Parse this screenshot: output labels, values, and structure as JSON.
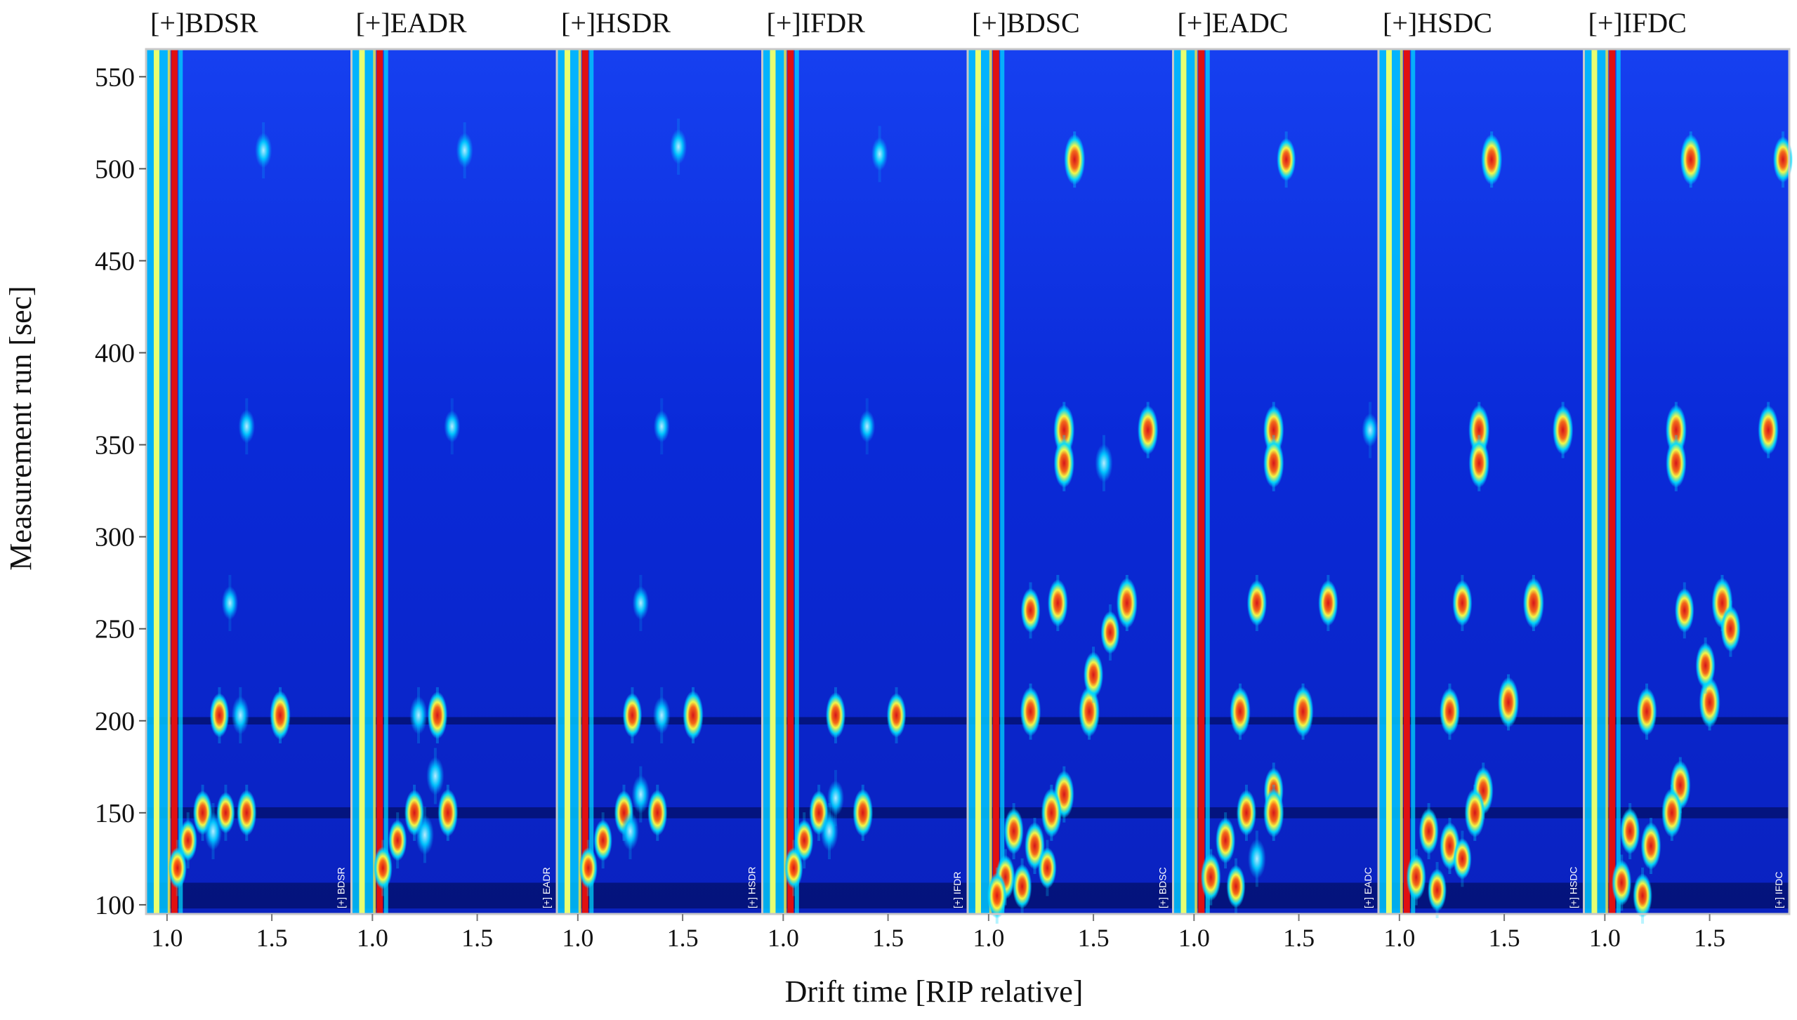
{
  "chart_data": {
    "type": "heatmap",
    "title": "",
    "xlabel": "Drift time [RIP relative]",
    "ylabel": "Measurement run [sec]",
    "y_ticks": [
      100,
      150,
      200,
      250,
      300,
      350,
      400,
      450,
      500,
      550
    ],
    "x_ticks": [
      1.0,
      1.5
    ],
    "x_tick_labels": [
      "1.0",
      "1.5"
    ],
    "ylim": [
      95,
      565
    ],
    "xlim": [
      0.9,
      1.88
    ],
    "colors": {
      "background": "#0a2ae0",
      "low": "#00009a",
      "mid": "#00d8ff",
      "high": "#ffff40",
      "peak": "#e01010"
    },
    "panels": [
      {
        "label": "[+]BDSR",
        "tag": "[+] BDSR",
        "peaks": [
          {
            "x": 1.54,
            "y": 203,
            "i": 0.95
          },
          {
            "x": 1.25,
            "y": 203,
            "i": 0.8
          },
          {
            "x": 1.35,
            "y": 203,
            "i": 0.6
          },
          {
            "x": 1.17,
            "y": 150,
            "i": 0.8
          },
          {
            "x": 1.28,
            "y": 150,
            "i": 0.7
          },
          {
            "x": 1.38,
            "y": 150,
            "i": 0.85
          },
          {
            "x": 1.1,
            "y": 135,
            "i": 0.7
          },
          {
            "x": 1.22,
            "y": 140,
            "i": 0.6
          },
          {
            "x": 1.05,
            "y": 120,
            "i": 0.7
          },
          {
            "x": 1.46,
            "y": 510,
            "i": 0.5
          },
          {
            "x": 1.38,
            "y": 360,
            "i": 0.45
          },
          {
            "x": 1.3,
            "y": 264,
            "i": 0.45
          }
        ]
      },
      {
        "label": "[+]EADR",
        "tag": "[+] EADR",
        "peaks": [
          {
            "x": 1.31,
            "y": 203,
            "i": 0.9
          },
          {
            "x": 1.22,
            "y": 203,
            "i": 0.6
          },
          {
            "x": 1.2,
            "y": 150,
            "i": 0.85
          },
          {
            "x": 1.36,
            "y": 150,
            "i": 0.9
          },
          {
            "x": 1.3,
            "y": 170,
            "i": 0.6
          },
          {
            "x": 1.12,
            "y": 135,
            "i": 0.7
          },
          {
            "x": 1.25,
            "y": 138,
            "i": 0.65
          },
          {
            "x": 1.05,
            "y": 120,
            "i": 0.75
          },
          {
            "x": 1.44,
            "y": 510,
            "i": 0.5
          },
          {
            "x": 1.38,
            "y": 360,
            "i": 0.4
          }
        ]
      },
      {
        "label": "[+]HSDR",
        "tag": "[+] HSDR",
        "peaks": [
          {
            "x": 1.55,
            "y": 203,
            "i": 0.95
          },
          {
            "x": 1.26,
            "y": 203,
            "i": 0.8
          },
          {
            "x": 1.4,
            "y": 203,
            "i": 0.55
          },
          {
            "x": 1.22,
            "y": 150,
            "i": 0.8
          },
          {
            "x": 1.38,
            "y": 150,
            "i": 0.85
          },
          {
            "x": 1.3,
            "y": 160,
            "i": 0.6
          },
          {
            "x": 1.12,
            "y": 135,
            "i": 0.7
          },
          {
            "x": 1.25,
            "y": 140,
            "i": 0.6
          },
          {
            "x": 1.05,
            "y": 120,
            "i": 0.7
          },
          {
            "x": 1.48,
            "y": 512,
            "i": 0.5
          },
          {
            "x": 1.3,
            "y": 264,
            "i": 0.45
          },
          {
            "x": 1.4,
            "y": 360,
            "i": 0.4
          }
        ]
      },
      {
        "label": "[+]IFDR",
        "tag": "[+] IFDR",
        "peaks": [
          {
            "x": 1.54,
            "y": 203,
            "i": 0.8
          },
          {
            "x": 1.25,
            "y": 203,
            "i": 0.85
          },
          {
            "x": 1.17,
            "y": 150,
            "i": 0.8
          },
          {
            "x": 1.38,
            "y": 150,
            "i": 0.9
          },
          {
            "x": 1.25,
            "y": 158,
            "i": 0.5
          },
          {
            "x": 1.1,
            "y": 135,
            "i": 0.7
          },
          {
            "x": 1.22,
            "y": 140,
            "i": 0.65
          },
          {
            "x": 1.05,
            "y": 120,
            "i": 0.7
          },
          {
            "x": 1.46,
            "y": 508,
            "i": 0.45
          },
          {
            "x": 1.4,
            "y": 360,
            "i": 0.4
          }
        ]
      },
      {
        "label": "[+]BDSC",
        "tag": "[+] BDSC",
        "peaks": [
          {
            "x": 1.41,
            "y": 505,
            "i": 1.0
          },
          {
            "x": 1.36,
            "y": 358,
            "i": 1.0
          },
          {
            "x": 1.36,
            "y": 340,
            "i": 0.95
          },
          {
            "x": 1.76,
            "y": 358,
            "i": 0.95
          },
          {
            "x": 1.55,
            "y": 340,
            "i": 0.6
          },
          {
            "x": 1.66,
            "y": 264,
            "i": 1.0
          },
          {
            "x": 1.58,
            "y": 248,
            "i": 0.75
          },
          {
            "x": 1.48,
            "y": 205,
            "i": 1.0
          },
          {
            "x": 1.5,
            "y": 225,
            "i": 0.85
          },
          {
            "x": 1.2,
            "y": 205,
            "i": 0.95
          },
          {
            "x": 1.33,
            "y": 264,
            "i": 0.9
          },
          {
            "x": 1.2,
            "y": 260,
            "i": 0.8
          },
          {
            "x": 1.36,
            "y": 160,
            "i": 0.9
          },
          {
            "x": 1.3,
            "y": 150,
            "i": 0.95
          },
          {
            "x": 1.22,
            "y": 132,
            "i": 0.9
          },
          {
            "x": 1.12,
            "y": 140,
            "i": 0.85
          },
          {
            "x": 1.08,
            "y": 115,
            "i": 0.8
          },
          {
            "x": 1.04,
            "y": 105,
            "i": 0.85
          },
          {
            "x": 1.16,
            "y": 110,
            "i": 0.8
          },
          {
            "x": 1.28,
            "y": 120,
            "i": 0.7
          }
        ]
      },
      {
        "label": "[+]EADC",
        "tag": "[+] EADC",
        "peaks": [
          {
            "x": 1.44,
            "y": 505,
            "i": 0.75
          },
          {
            "x": 1.38,
            "y": 358,
            "i": 0.95
          },
          {
            "x": 1.38,
            "y": 340,
            "i": 0.95
          },
          {
            "x": 1.3,
            "y": 264,
            "i": 0.85
          },
          {
            "x": 1.64,
            "y": 264,
            "i": 0.85
          },
          {
            "x": 1.52,
            "y": 205,
            "i": 1.0
          },
          {
            "x": 1.22,
            "y": 205,
            "i": 0.95
          },
          {
            "x": 1.38,
            "y": 162,
            "i": 0.85
          },
          {
            "x": 1.38,
            "y": 150,
            "i": 0.95
          },
          {
            "x": 1.25,
            "y": 150,
            "i": 0.85
          },
          {
            "x": 1.15,
            "y": 135,
            "i": 0.85
          },
          {
            "x": 1.08,
            "y": 115,
            "i": 0.9
          },
          {
            "x": 1.2,
            "y": 110,
            "i": 0.75
          },
          {
            "x": 1.3,
            "y": 125,
            "i": 0.65
          },
          {
            "x": 1.84,
            "y": 358,
            "i": 0.45
          }
        ]
      },
      {
        "label": "[+]HSDC",
        "tag": "[+] HSDC",
        "peaks": [
          {
            "x": 1.44,
            "y": 505,
            "i": 1.0
          },
          {
            "x": 1.38,
            "y": 358,
            "i": 1.0
          },
          {
            "x": 1.38,
            "y": 340,
            "i": 0.95
          },
          {
            "x": 1.78,
            "y": 358,
            "i": 0.95
          },
          {
            "x": 1.64,
            "y": 264,
            "i": 1.0
          },
          {
            "x": 1.3,
            "y": 264,
            "i": 0.85
          },
          {
            "x": 1.52,
            "y": 210,
            "i": 1.0
          },
          {
            "x": 1.24,
            "y": 205,
            "i": 0.9
          },
          {
            "x": 1.4,
            "y": 162,
            "i": 0.9
          },
          {
            "x": 1.36,
            "y": 150,
            "i": 0.95
          },
          {
            "x": 1.24,
            "y": 132,
            "i": 0.9
          },
          {
            "x": 1.14,
            "y": 140,
            "i": 0.85
          },
          {
            "x": 1.08,
            "y": 115,
            "i": 0.85
          },
          {
            "x": 1.18,
            "y": 108,
            "i": 0.75
          },
          {
            "x": 1.3,
            "y": 125,
            "i": 0.7
          }
        ]
      },
      {
        "label": "[+]IFDC",
        "tag": "[+] IFDC",
        "peaks": [
          {
            "x": 1.41,
            "y": 505,
            "i": 1.0
          },
          {
            "x": 1.85,
            "y": 505,
            "i": 0.85
          },
          {
            "x": 1.34,
            "y": 358,
            "i": 1.0
          },
          {
            "x": 1.34,
            "y": 340,
            "i": 0.95
          },
          {
            "x": 1.78,
            "y": 358,
            "i": 0.95
          },
          {
            "x": 1.56,
            "y": 264,
            "i": 1.0
          },
          {
            "x": 1.6,
            "y": 250,
            "i": 0.85
          },
          {
            "x": 1.5,
            "y": 210,
            "i": 1.0
          },
          {
            "x": 1.48,
            "y": 230,
            "i": 0.85
          },
          {
            "x": 1.2,
            "y": 205,
            "i": 0.9
          },
          {
            "x": 1.38,
            "y": 260,
            "i": 0.8
          },
          {
            "x": 1.36,
            "y": 165,
            "i": 0.95
          },
          {
            "x": 1.32,
            "y": 150,
            "i": 0.95
          },
          {
            "x": 1.22,
            "y": 132,
            "i": 0.9
          },
          {
            "x": 1.12,
            "y": 140,
            "i": 0.85
          },
          {
            "x": 1.08,
            "y": 112,
            "i": 0.85
          },
          {
            "x": 1.18,
            "y": 105,
            "i": 0.8
          }
        ]
      }
    ]
  }
}
